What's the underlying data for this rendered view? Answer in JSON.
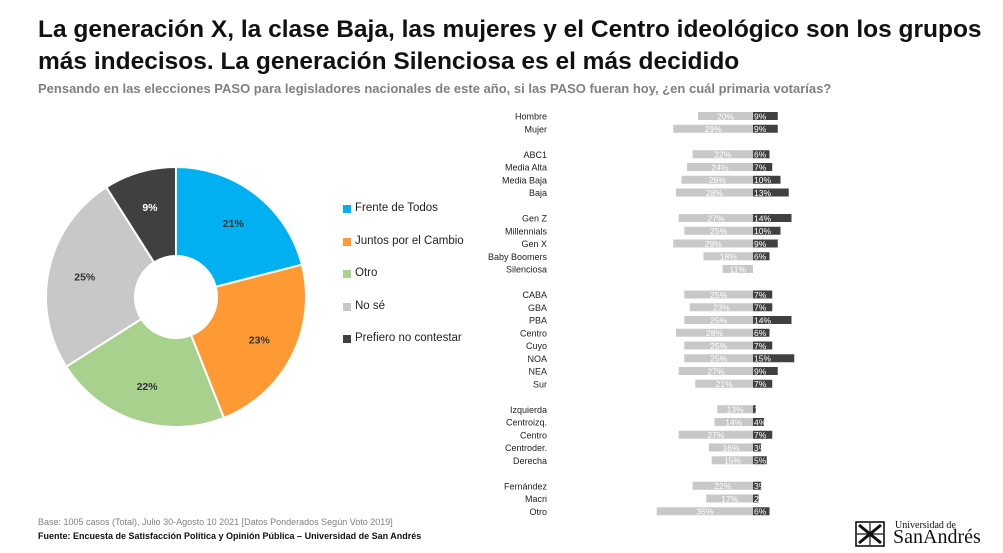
{
  "header": {
    "title": "La generación X, la clase Baja, las mujeres y el Centro ideológico son los grupos más indecisos. La generación Silenciosa es el más decidido",
    "subtitle": "Pensando en las elecciones PASO para legisladores nacionales de este año, si las PASO fueran hoy, ¿en cuál primaria votarías?"
  },
  "chart_data": [
    {
      "type": "pie",
      "variant": "donut",
      "slices": [
        {
          "label": "Frente de Todos",
          "value": 21,
          "value_label": "21%",
          "color": "#00B0F0"
        },
        {
          "label": "Juntos por el Cambio",
          "value": 23,
          "value_label": "23%",
          "color": "#FF9933"
        },
        {
          "label": "Otro",
          "value": 22,
          "value_label": "22%",
          "color": "#A9D18E"
        },
        {
          "label": "No sé",
          "value": 25,
          "value_label": "25%",
          "color": "#C8C8C8"
        },
        {
          "label": "Prefiero no contestar",
          "value": 9,
          "value_label": "9%",
          "color": "#404040"
        }
      ],
      "legend_position": "right"
    },
    {
      "type": "bar",
      "orientation": "horizontal",
      "stacked": "diverging",
      "series": [
        {
          "name": "No sé",
          "color": "#C8C8C8",
          "direction": "left"
        },
        {
          "name": "Prefiero no contestar",
          "color": "#404040",
          "direction": "right"
        }
      ],
      "groups": [
        {
          "rows": [
            {
              "label": "Hombre",
              "nose": 20,
              "nose_label": "20%",
              "pnc": 9,
              "pnc_label": "9%"
            },
            {
              "label": "Mujer",
              "nose": 29,
              "nose_label": "29%",
              "pnc": 9,
              "pnc_label": "9%"
            }
          ]
        },
        {
          "rows": [
            {
              "label": "ABC1",
              "nose": 22,
              "nose_label": "22%",
              "pnc": 6,
              "pnc_label": "6%"
            },
            {
              "label": "Media Alta",
              "nose": 24,
              "nose_label": "24%",
              "pnc": 7,
              "pnc_label": "7%"
            },
            {
              "label": "Media Baja",
              "nose": 26,
              "nose_label": "26%",
              "pnc": 10,
              "pnc_label": "10%"
            },
            {
              "label": "Baja",
              "nose": 28,
              "nose_label": "28%",
              "pnc": 13,
              "pnc_label": "13%"
            }
          ]
        },
        {
          "rows": [
            {
              "label": "Gen Z",
              "nose": 27,
              "nose_label": "27%",
              "pnc": 14,
              "pnc_label": "14%"
            },
            {
              "label": "Millennials",
              "nose": 25,
              "nose_label": "25%",
              "pnc": 10,
              "pnc_label": "10%"
            },
            {
              "label": "Gen X",
              "nose": 29,
              "nose_label": "29%",
              "pnc": 9,
              "pnc_label": "9%"
            },
            {
              "label": "Baby Boomers",
              "nose": 18,
              "nose_label": "18%",
              "pnc": 6,
              "pnc_label": "6%"
            },
            {
              "label": "Silenciosa",
              "nose": 11,
              "nose_label": "11%",
              "pnc": 0,
              "pnc_label": ""
            }
          ]
        },
        {
          "rows": [
            {
              "label": "CABA",
              "nose": 25,
              "nose_label": "25%",
              "pnc": 7,
              "pnc_label": "7%"
            },
            {
              "label": "GBA",
              "nose": 23,
              "nose_label": "23%",
              "pnc": 7,
              "pnc_label": "7%"
            },
            {
              "label": "PBA",
              "nose": 25,
              "nose_label": "25%",
              "pnc": 14,
              "pnc_label": "14%"
            },
            {
              "label": "Centro",
              "nose": 28,
              "nose_label": "28%",
              "pnc": 6,
              "pnc_label": "6%"
            },
            {
              "label": "Cuyo",
              "nose": 25,
              "nose_label": "25%",
              "pnc": 7,
              "pnc_label": "7%"
            },
            {
              "label": "NOA",
              "nose": 25,
              "nose_label": "25%",
              "pnc": 15,
              "pnc_label": "15%"
            },
            {
              "label": "NEA",
              "nose": 27,
              "nose_label": "27%",
              "pnc": 9,
              "pnc_label": "9%"
            },
            {
              "label": "Sur",
              "nose": 21,
              "nose_label": "21%",
              "pnc": 7,
              "pnc_label": "7%"
            }
          ]
        },
        {
          "rows": [
            {
              "label": "Izquierda",
              "nose": 13,
              "nose_label": "13%",
              "pnc": 1,
              "pnc_label": "1"
            },
            {
              "label": "Centroizq.",
              "nose": 14,
              "nose_label": "14%",
              "pnc": 4,
              "pnc_label": "4%"
            },
            {
              "label": "Centro",
              "nose": 27,
              "nose_label": "27%",
              "pnc": 7,
              "pnc_label": "7%"
            },
            {
              "label": "Centroder.",
              "nose": 16,
              "nose_label": "16%",
              "pnc": 3,
              "pnc_label": "3%"
            },
            {
              "label": "Derecha",
              "nose": 15,
              "nose_label": "15%",
              "pnc": 5,
              "pnc_label": "5%"
            }
          ]
        },
        {
          "rows": [
            {
              "label": "Fernández",
              "nose": 22,
              "nose_label": "22%",
              "pnc": 3,
              "pnc_label": "3%"
            },
            {
              "label": "Macri",
              "nose": 17,
              "nose_label": "17%",
              "pnc": 2,
              "pnc_label": "2%"
            },
            {
              "label": "Otro",
              "nose": 35,
              "nose_label": "35%",
              "pnc": 6,
              "pnc_label": "6%"
            }
          ]
        }
      ]
    }
  ],
  "footer": {
    "base_note": "Base: 1005 casos (Total), Julio 30-Agosto 10 2021 [Datos Ponderados Según Voto 2019]",
    "source": "Fuente: Encuesta de Satisfacción Política y Opinión Pública – Universidad de San Andrés"
  },
  "logo": {
    "small_text": "Universidad de",
    "big_text": "SanAndrés"
  }
}
